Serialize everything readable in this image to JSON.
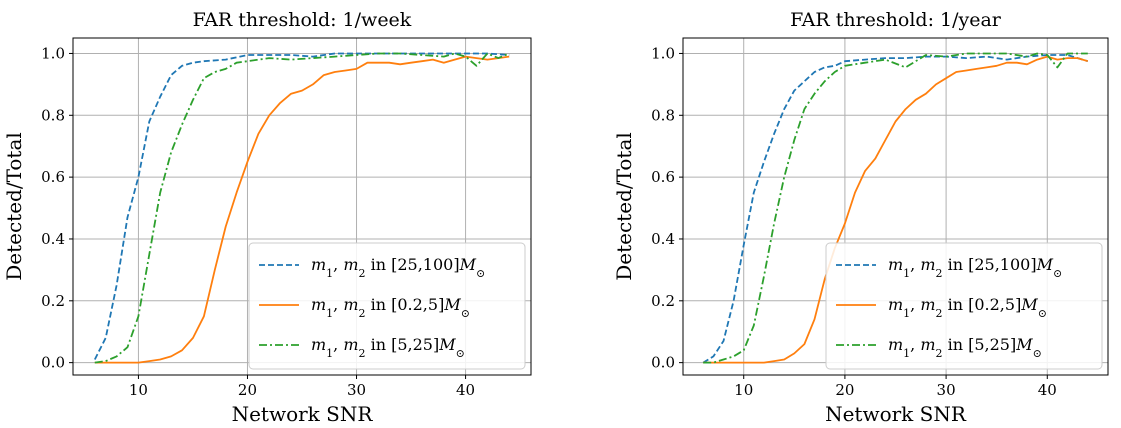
{
  "chart_data": [
    {
      "type": "line",
      "title": "FAR threshold: 1/week",
      "xlabel": "Network SNR",
      "ylabel": "Detected/Total",
      "xlim": [
        4,
        46
      ],
      "ylim": [
        -0.04,
        1.05
      ],
      "xticks": [
        10,
        20,
        30,
        40
      ],
      "yticks": [
        0.0,
        0.2,
        0.4,
        0.6,
        0.8,
        1.0
      ],
      "ytick_labels": [
        "0.0",
        "0.2",
        "0.4",
        "0.6",
        "0.8",
        "1.0"
      ],
      "grid": true,
      "legend_position": "lower-right",
      "series": [
        {
          "name": "m1, m2 in [25,100]M⊙",
          "style": "dashed",
          "color": "#1f77b4",
          "x": [
            6,
            7,
            8,
            9,
            10,
            11,
            12,
            13,
            14,
            15,
            16,
            18,
            20,
            22,
            24,
            26,
            28,
            30,
            32,
            34,
            36,
            38,
            40,
            42,
            44
          ],
          "y": [
            0.01,
            0.08,
            0.25,
            0.47,
            0.6,
            0.78,
            0.86,
            0.93,
            0.96,
            0.97,
            0.975,
            0.98,
            0.995,
            0.995,
            0.995,
            0.99,
            1.0,
            1.0,
            1.0,
            1.0,
            1.0,
            1.0,
            1.0,
            1.0,
            0.995
          ]
        },
        {
          "name": "m1, m2 in [0.2,5]M⊙",
          "style": "solid",
          "color": "#ff7f0e",
          "x": [
            6,
            8,
            10,
            11,
            12,
            13,
            14,
            15,
            16,
            17,
            18,
            19,
            20,
            21,
            22,
            23,
            24,
            25,
            26,
            27,
            28,
            29,
            30,
            31,
            32,
            33,
            34,
            35,
            36,
            37,
            38,
            39,
            40,
            41,
            42,
            43,
            44
          ],
          "y": [
            0.0,
            0.0,
            0.0,
            0.005,
            0.01,
            0.02,
            0.04,
            0.08,
            0.15,
            0.3,
            0.44,
            0.55,
            0.65,
            0.74,
            0.8,
            0.84,
            0.87,
            0.88,
            0.9,
            0.93,
            0.94,
            0.945,
            0.95,
            0.97,
            0.97,
            0.97,
            0.965,
            0.97,
            0.975,
            0.98,
            0.97,
            0.98,
            0.99,
            0.985,
            0.98,
            0.985,
            0.99
          ]
        },
        {
          "name": "m1, m2 in [5,25]M⊙",
          "style": "dashdot",
          "color": "#2ca02c",
          "x": [
            6,
            7,
            8,
            9,
            10,
            11,
            12,
            13,
            14,
            15,
            16,
            17,
            18,
            19,
            20,
            22,
            24,
            26,
            28,
            30,
            32,
            34,
            36,
            38,
            39,
            40,
            41,
            42,
            43,
            44
          ],
          "y": [
            0.0,
            0.005,
            0.02,
            0.05,
            0.15,
            0.35,
            0.55,
            0.68,
            0.77,
            0.85,
            0.92,
            0.94,
            0.95,
            0.97,
            0.975,
            0.985,
            0.98,
            0.985,
            0.99,
            0.995,
            1.0,
            1.0,
            0.995,
            0.99,
            1.0,
            0.99,
            0.96,
            1.0,
            0.985,
            1.0
          ]
        }
      ]
    },
    {
      "type": "line",
      "title": "FAR threshold: 1/year",
      "xlabel": "Network SNR",
      "ylabel": "Detected/Total",
      "xlim": [
        4,
        46
      ],
      "ylim": [
        -0.04,
        1.05
      ],
      "xticks": [
        10,
        20,
        30,
        40
      ],
      "yticks": [
        0.0,
        0.2,
        0.4,
        0.6,
        0.8,
        1.0
      ],
      "ytick_labels": [
        "0.0",
        "0.2",
        "0.4",
        "0.6",
        "0.8",
        "1.0"
      ],
      "grid": true,
      "legend_position": "lower-right",
      "series": [
        {
          "name": "m1, m2 in [25,100]M⊙",
          "style": "dashed",
          "color": "#1f77b4",
          "x": [
            6,
            7,
            8,
            9,
            10,
            11,
            12,
            13,
            14,
            15,
            16,
            17,
            18,
            19,
            20,
            22,
            24,
            26,
            28,
            30,
            32,
            34,
            36,
            38,
            40,
            42,
            44
          ],
          "y": [
            0.0,
            0.02,
            0.07,
            0.2,
            0.38,
            0.55,
            0.65,
            0.74,
            0.82,
            0.88,
            0.91,
            0.94,
            0.955,
            0.96,
            0.975,
            0.98,
            0.985,
            0.985,
            0.99,
            0.99,
            0.985,
            0.99,
            0.98,
            0.99,
            0.995,
            0.995,
            0.975
          ]
        },
        {
          "name": "m1, m2 in [0.2,5]M⊙",
          "style": "solid",
          "color": "#ff7f0e",
          "x": [
            6,
            10,
            12,
            13,
            14,
            15,
            16,
            17,
            18,
            19,
            20,
            21,
            22,
            23,
            24,
            25,
            26,
            27,
            28,
            29,
            30,
            31,
            32,
            33,
            34,
            35,
            36,
            37,
            38,
            39,
            40,
            41,
            42,
            43,
            44
          ],
          "y": [
            0.0,
            0.0,
            0.0,
            0.005,
            0.01,
            0.03,
            0.06,
            0.14,
            0.27,
            0.37,
            0.45,
            0.55,
            0.62,
            0.66,
            0.72,
            0.78,
            0.82,
            0.85,
            0.87,
            0.9,
            0.92,
            0.94,
            0.945,
            0.95,
            0.955,
            0.96,
            0.97,
            0.97,
            0.965,
            0.98,
            0.99,
            0.98,
            0.985,
            0.985,
            0.975
          ]
        },
        {
          "name": "m1, m2 in [5,25]M⊙",
          "style": "dashdot",
          "color": "#2ca02c",
          "x": [
            6,
            7,
            8,
            9,
            10,
            11,
            12,
            13,
            14,
            15,
            16,
            17,
            18,
            19,
            20,
            22,
            24,
            26,
            28,
            30,
            32,
            34,
            36,
            38,
            39,
            40,
            41,
            42,
            43,
            44
          ],
          "y": [
            0.0,
            0.0,
            0.01,
            0.02,
            0.04,
            0.12,
            0.28,
            0.45,
            0.6,
            0.72,
            0.82,
            0.87,
            0.91,
            0.94,
            0.96,
            0.97,
            0.98,
            0.955,
            0.995,
            0.99,
            1.0,
            1.0,
            1.0,
            0.99,
            1.0,
            0.995,
            0.955,
            1.0,
            1.0,
            1.0
          ]
        }
      ]
    }
  ],
  "legend_labels": {
    "mass_prefix": "in",
    "ranges": [
      "[25,100]",
      "[0.2,5]",
      "[5,25]"
    ],
    "unit_symbol": "M",
    "unit_sub": "⊙",
    "m1": "m",
    "m1_sub": "1",
    "m2": "m",
    "m2_sub": "2",
    "comma": ","
  }
}
